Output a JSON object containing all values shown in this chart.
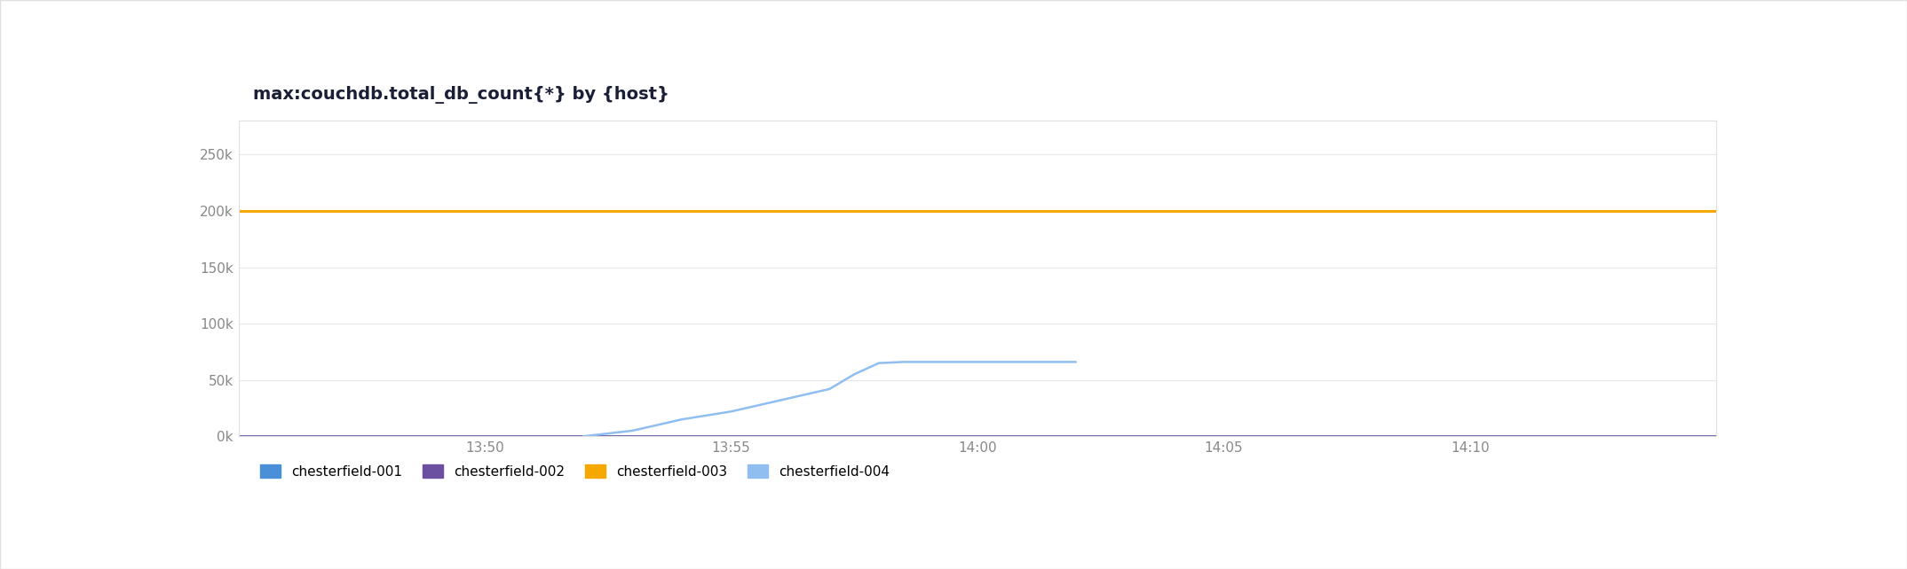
{
  "title": "max:couchdb.total_db_count{*} by {host}",
  "background_color": "#ffffff",
  "plot_bg_color": "#ffffff",
  "header_bg_color": "#ffffff",
  "border_color": "#e0e0e0",
  "ylim": [
    0,
    280000
  ],
  "yticks": [
    0,
    50000,
    100000,
    150000,
    200000,
    250000
  ],
  "ytick_labels": [
    "0k",
    "50k",
    "100k",
    "150k",
    "200k",
    "250k"
  ],
  "xlim": [
    0,
    30
  ],
  "xtick_positions": [
    5,
    10,
    15,
    20,
    25
  ],
  "xtick_labels": [
    "13:50",
    "13:55",
    "14:00",
    "14:05",
    "14:10"
  ],
  "series": [
    {
      "name": "chesterfield-001",
      "color": "#4a90d9",
      "linewidth": 1.8,
      "points": [
        [
          0,
          0
        ],
        [
          30,
          0
        ]
      ]
    },
    {
      "name": "chesterfield-002",
      "color": "#6b4fa0",
      "linewidth": 1.8,
      "points": [
        [
          0,
          0
        ],
        [
          30,
          0
        ]
      ]
    },
    {
      "name": "chesterfield-003",
      "color": "#f5a800",
      "linewidth": 2.2,
      "points": [
        [
          0,
          200000
        ],
        [
          30,
          200000
        ]
      ]
    },
    {
      "name": "chesterfield-004",
      "color": "#90bef0",
      "linewidth": 1.8,
      "points": [
        [
          7,
          0
        ],
        [
          8,
          5000
        ],
        [
          9,
          15000
        ],
        [
          10,
          22000
        ],
        [
          11,
          32000
        ],
        [
          12,
          42000
        ],
        [
          12.5,
          55000
        ],
        [
          13,
          65000
        ],
        [
          13.5,
          66000
        ],
        [
          17,
          66000
        ]
      ]
    }
  ],
  "legend_colors": [
    "#4a90d9",
    "#6b4fa0",
    "#f5a800",
    "#90bef0"
  ],
  "legend_labels": [
    "chesterfield-001",
    "chesterfield-002",
    "chesterfield-003",
    "chesterfield-004"
  ],
  "title_fontsize": 14,
  "tick_fontsize": 11,
  "legend_fontsize": 11,
  "grid_color": "#e8e8e8",
  "tick_color": "#888888",
  "title_color": "#1a1f36"
}
